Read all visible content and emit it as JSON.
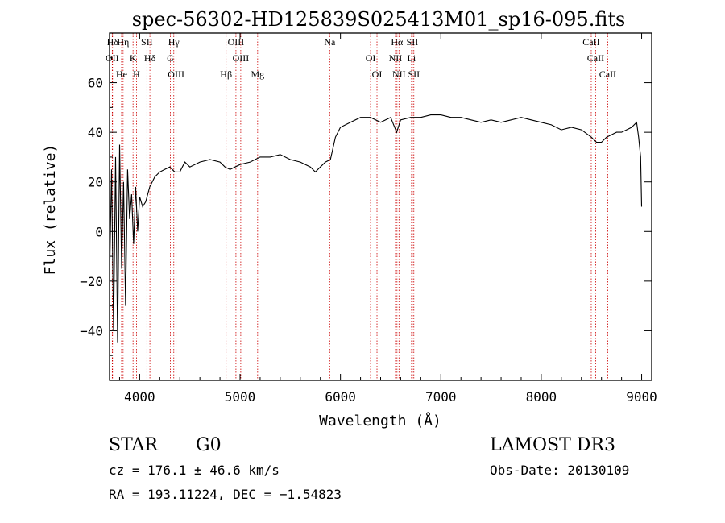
{
  "chart_data": {
    "type": "line",
    "title": "spec-56302-HD125839S025413M01_sp16-095.fits",
    "xlabel": "Wavelength (Å)",
    "ylabel": "Flux (relative)",
    "xlim": [
      3700,
      9100
    ],
    "ylim": [
      -60,
      80
    ],
    "xticks": [
      4000,
      5000,
      6000,
      7000,
      8000,
      9000
    ],
    "xtick_labels": [
      "4000",
      "5000",
      "6000",
      "7000",
      "8000",
      "9000"
    ],
    "yticks": [
      -40,
      -20,
      0,
      20,
      40,
      60
    ],
    "ytick_labels": [
      "−40",
      "−20",
      "0",
      "20",
      "40",
      "60"
    ],
    "series": [
      {
        "name": "flux",
        "x": [
          3700,
          3720,
          3740,
          3760,
          3780,
          3800,
          3820,
          3840,
          3860,
          3880,
          3900,
          3920,
          3940,
          3960,
          3980,
          4000,
          4030,
          4060,
          4100,
          4150,
          4200,
          4250,
          4300,
          4350,
          4400,
          4450,
          4500,
          4600,
          4700,
          4800,
          4850,
          4900,
          5000,
          5100,
          5200,
          5300,
          5400,
          5500,
          5600,
          5700,
          5750,
          5800,
          5850,
          5900,
          5950,
          6000,
          6100,
          6200,
          6300,
          6400,
          6500,
          6560,
          6600,
          6700,
          6800,
          6900,
          7000,
          7100,
          7200,
          7300,
          7400,
          7500,
          7600,
          7700,
          7800,
          7900,
          8000,
          8100,
          8200,
          8300,
          8400,
          8500,
          8550,
          8600,
          8650,
          8700,
          8750,
          8800,
          8850,
          8900,
          8950,
          8970,
          8990,
          9000
        ],
        "y": [
          -20,
          25,
          -40,
          30,
          -45,
          35,
          -15,
          20,
          -30,
          25,
          5,
          15,
          -5,
          18,
          0,
          14,
          10,
          12,
          18,
          22,
          24,
          25,
          26,
          24,
          24,
          28,
          26,
          28,
          29,
          28,
          26,
          25,
          27,
          28,
          30,
          30,
          31,
          29,
          28,
          26,
          24,
          26,
          28,
          29,
          38,
          42,
          44,
          46,
          46,
          44,
          46,
          40,
          45,
          46,
          46,
          47,
          47,
          46,
          46,
          45,
          44,
          45,
          44,
          45,
          46,
          45,
          44,
          43,
          41,
          42,
          41,
          38,
          36,
          36,
          38,
          39,
          40,
          40,
          41,
          42,
          44,
          38,
          30,
          10
        ]
      }
    ],
    "line_markers": [
      {
        "label": "Hδ",
        "wavelength": 3730
      },
      {
        "label": "OII",
        "wavelength": 3727
      },
      {
        "label": "He",
        "wavelength": 3820
      },
      {
        "label": "Hη",
        "wavelength": 3835
      },
      {
        "label": "K",
        "wavelength": 3934
      },
      {
        "label": "H",
        "wavelength": 3968
      },
      {
        "label": "SII",
        "wavelength": 4072
      },
      {
        "label": "Hδ",
        "wavelength": 4102
      },
      {
        "label": "OIII",
        "wavelength": 4363
      },
      {
        "label": "Hγ",
        "wavelength": 4340
      },
      {
        "label": "G",
        "wavelength": 4305
      },
      {
        "label": "Hβ",
        "wavelength": 4861
      },
      {
        "label": "OIII",
        "wavelength": 4959
      },
      {
        "label": "OIII",
        "wavelength": 5007
      },
      {
        "label": "Mg",
        "wavelength": 5175
      },
      {
        "label": "Na",
        "wavelength": 5893
      },
      {
        "label": "OI",
        "wavelength": 6300
      },
      {
        "label": "OI",
        "wavelength": 6364
      },
      {
        "label": "Hα",
        "wavelength": 6563
      },
      {
        "label": "NII",
        "wavelength": 6548
      },
      {
        "label": "NII",
        "wavelength": 6583
      },
      {
        "label": "SII",
        "wavelength": 6716
      },
      {
        "label": "Li",
        "wavelength": 6708
      },
      {
        "label": "SII",
        "wavelength": 6731
      },
      {
        "label": "CaII",
        "wavelength": 8498
      },
      {
        "label": "CaII",
        "wavelength": 8542
      },
      {
        "label": "CaII",
        "wavelength": 8662
      }
    ]
  },
  "info": {
    "object_class": "STAR",
    "subclass": "G0",
    "survey": "LAMOST DR3",
    "redshift": "cz = 176.1 ± 46.6 km/s",
    "obs_date": "Obs-Date: 20130109",
    "coords": "RA = 193.11224, DEC =  −1.54823"
  },
  "colors": {
    "marker": "#cc0000",
    "axis": "#000000",
    "spectrum": "#000000"
  }
}
